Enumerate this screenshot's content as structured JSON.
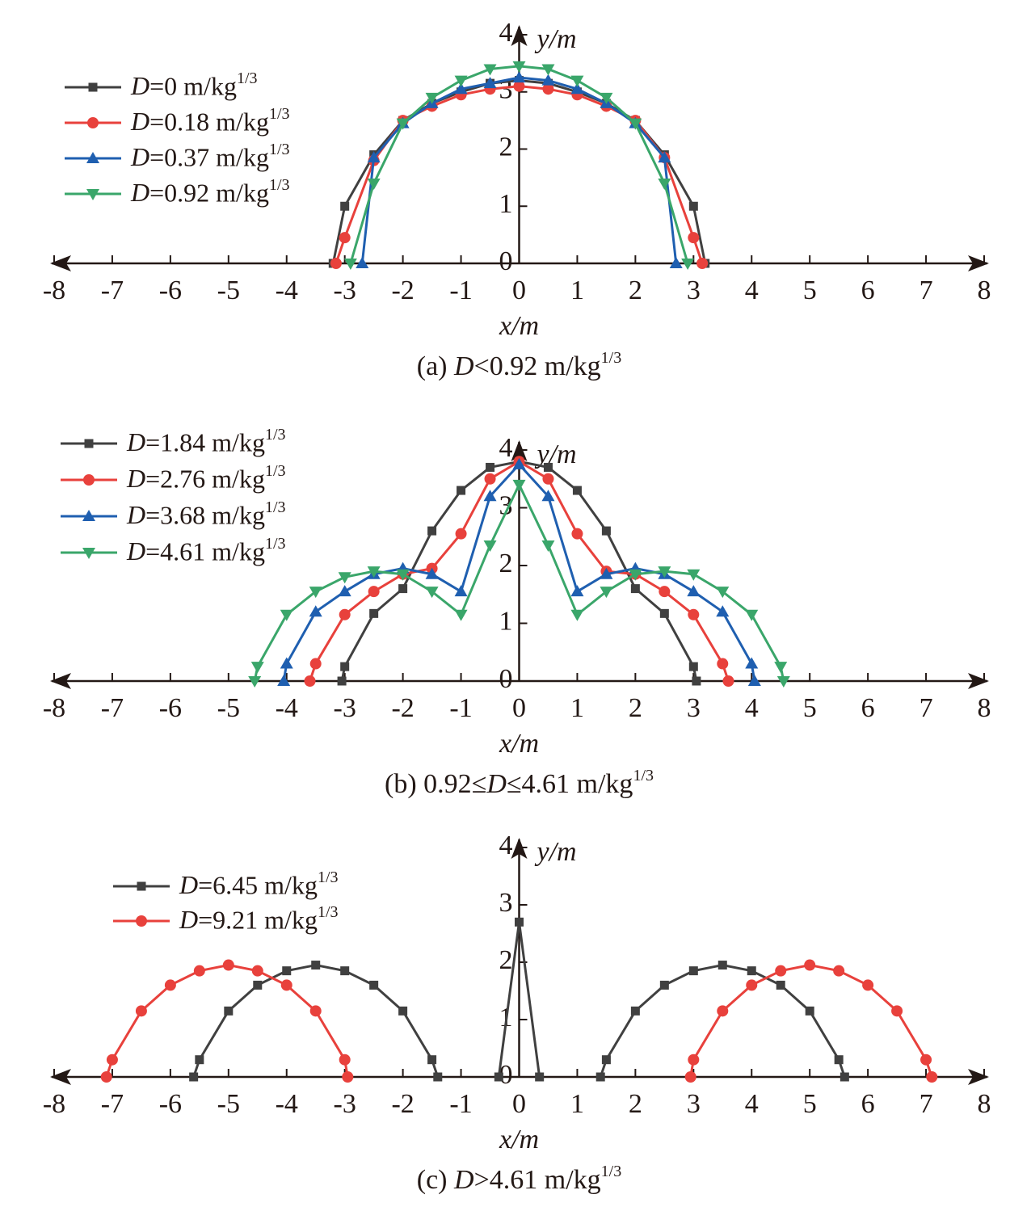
{
  "chart_data": [
    {
      "type": "line",
      "title": "(a) D<0.92 m/kg1/3",
      "xlabel": "x/m",
      "ylabel": "y/m",
      "xlim": [
        -8,
        8
      ],
      "ylim": [
        0,
        4
      ],
      "xticks": [
        -8,
        -7,
        -6,
        -5,
        -4,
        -3,
        -2,
        -1,
        0,
        1,
        2,
        3,
        4,
        5,
        6,
        7,
        8
      ],
      "yticks": [
        0,
        1,
        2,
        3,
        4
      ],
      "grid": false,
      "legend": "upper left",
      "series": [
        {
          "name": "D=0 m/kg1/3",
          "color": "#404040",
          "marker": "square",
          "x": [
            -3.2,
            -3,
            -2.5,
            -2,
            -1.5,
            -1,
            -0.5,
            0,
            0.5,
            1,
            1.5,
            2,
            2.5,
            3,
            3.2
          ],
          "values": [
            0,
            1,
            1.9,
            2.5,
            2.8,
            3.0,
            3.15,
            3.2,
            3.15,
            3.0,
            2.8,
            2.5,
            1.9,
            1,
            0
          ]
        },
        {
          "name": "D=0.18 m/kg1/3",
          "color": "#e8413c",
          "marker": "circle",
          "x": [
            -3.15,
            -3,
            -2.5,
            -2,
            -1.5,
            -1,
            -0.5,
            0,
            0.5,
            1,
            1.5,
            2,
            2.5,
            3,
            3.15
          ],
          "values": [
            0,
            0.45,
            1.8,
            2.5,
            2.75,
            2.95,
            3.05,
            3.1,
            3.05,
            2.95,
            2.75,
            2.5,
            1.85,
            0.45,
            0
          ]
        },
        {
          "name": "D=0.37 m/kg1/3",
          "color": "#1f5fb0",
          "marker": "triangle-up",
          "x": [
            -2.7,
            -2.5,
            -2,
            -1.5,
            -1,
            -0.5,
            0,
            0.5,
            1,
            1.5,
            2,
            2.5,
            2.7
          ],
          "values": [
            0,
            1.85,
            2.45,
            2.8,
            3.05,
            3.15,
            3.25,
            3.2,
            3.05,
            2.8,
            2.45,
            1.85,
            0
          ]
        },
        {
          "name": "D=0.92 m/kg1/3",
          "color": "#3aa66a",
          "marker": "triangle-down",
          "x": [
            -2.9,
            -2.5,
            -2,
            -1.5,
            -1,
            -0.5,
            0,
            0.5,
            1,
            1.5,
            2,
            2.5,
            2.9
          ],
          "values": [
            0,
            1.4,
            2.45,
            2.9,
            3.2,
            3.4,
            3.45,
            3.4,
            3.2,
            2.9,
            2.45,
            1.4,
            0
          ]
        }
      ]
    },
    {
      "type": "line",
      "title": "(b) 0.92≤D≤4.61 m/kg1/3",
      "xlabel": "x/m",
      "ylabel": "y/m",
      "xlim": [
        -8,
        8
      ],
      "ylim": [
        0,
        4
      ],
      "xticks": [
        -8,
        -7,
        -6,
        -5,
        -4,
        -3,
        -2,
        -1,
        0,
        1,
        2,
        3,
        4,
        5,
        6,
        7,
        8
      ],
      "yticks": [
        0,
        1,
        2,
        3,
        4
      ],
      "grid": false,
      "legend": "upper left",
      "series": [
        {
          "name": "D=1.84 m/kg1/3",
          "color": "#404040",
          "marker": "square",
          "x": [
            -3.05,
            -3,
            -2.5,
            -2,
            -1.5,
            -1,
            -0.5,
            0,
            0.5,
            1,
            1.5,
            2,
            2.5,
            3,
            3.05
          ],
          "values": [
            0,
            0.25,
            1.17,
            1.6,
            2.6,
            3.3,
            3.7,
            3.8,
            3.7,
            3.3,
            2.6,
            1.6,
            1.17,
            0.25,
            0
          ]
        },
        {
          "name": "D=2.76 m/kg1/3",
          "color": "#e8413c",
          "marker": "circle",
          "x": [
            -3.6,
            -3.5,
            -3,
            -2.5,
            -2,
            -1.5,
            -1,
            -0.5,
            0,
            0.5,
            1,
            1.5,
            2,
            2.5,
            3,
            3.5,
            3.6
          ],
          "values": [
            0,
            0.3,
            1.15,
            1.55,
            1.85,
            1.95,
            2.55,
            3.5,
            3.8,
            3.5,
            2.55,
            1.9,
            1.85,
            1.55,
            1.15,
            0.3,
            0
          ]
        },
        {
          "name": "D=3.68 m/kg1/3",
          "color": "#1f5fb0",
          "marker": "triangle-up",
          "x": [
            -4.05,
            -4,
            -3.5,
            -3,
            -2.5,
            -2,
            -1.5,
            -1,
            -0.5,
            0,
            0.5,
            1,
            1.5,
            2,
            2.5,
            3,
            3.5,
            4,
            4.05
          ],
          "values": [
            0,
            0.3,
            1.2,
            1.55,
            1.85,
            1.95,
            1.85,
            1.55,
            3.2,
            3.75,
            3.2,
            1.55,
            1.85,
            1.95,
            1.85,
            1.55,
            1.2,
            0.3,
            0
          ]
        },
        {
          "name": "D=4.61 m/kg1/3",
          "color": "#3aa66a",
          "marker": "triangle-down",
          "x": [
            -4.55,
            -4.5,
            -4,
            -3.5,
            -3,
            -2.5,
            -2,
            -1.5,
            -1,
            -0.5,
            0,
            0.5,
            1,
            1.5,
            2,
            2.5,
            3,
            3.5,
            4,
            4.5,
            4.55
          ],
          "values": [
            0,
            0.25,
            1.15,
            1.55,
            1.8,
            1.9,
            1.85,
            1.55,
            1.15,
            2.35,
            3.4,
            2.35,
            1.15,
            1.55,
            1.85,
            1.9,
            1.85,
            1.55,
            1.15,
            0.25,
            0
          ]
        }
      ]
    },
    {
      "type": "line",
      "title": "(c) D>4.61 m/kg1/3",
      "xlabel": "x/m",
      "ylabel": "y/m",
      "xlim": [
        -8,
        8
      ],
      "ylim": [
        0,
        4
      ],
      "xticks": [
        -8,
        -7,
        -6,
        -5,
        -4,
        -3,
        -2,
        -1,
        0,
        1,
        2,
        3,
        4,
        5,
        6,
        7,
        8
      ],
      "yticks": [
        0,
        1,
        2,
        3,
        4
      ],
      "grid": false,
      "legend": "upper left",
      "series": [
        {
          "name": "D=6.45 m/kg1/3",
          "color": "#404040",
          "marker": "square",
          "x": [
            -5.6,
            -5.5,
            -5,
            -4.5,
            -4,
            -3.5,
            -3,
            -2.5,
            -2,
            -1.5,
            -1.4,
            null,
            -0.35,
            0,
            0.35,
            null,
            1.4,
            1.5,
            2,
            2.5,
            3,
            3.5,
            4,
            4.5,
            5,
            5.5,
            5.6
          ],
          "values": [
            0,
            0.3,
            1.15,
            1.6,
            1.85,
            1.95,
            1.85,
            1.6,
            1.15,
            0.3,
            0,
            null,
            0,
            2.7,
            0,
            null,
            0,
            0.3,
            1.15,
            1.6,
            1.85,
            1.95,
            1.85,
            1.6,
            1.15,
            0.3,
            0
          ]
        },
        {
          "name": "D=9.21 m/kg1/3",
          "color": "#e8413c",
          "marker": "circle",
          "x": [
            -7.1,
            -7,
            -6.5,
            -6,
            -5.5,
            -5,
            -4.5,
            -4,
            -3.5,
            -3,
            -2.95,
            null,
            2.95,
            3,
            3.5,
            4,
            4.5,
            5,
            5.5,
            6,
            6.5,
            7,
            7.1
          ],
          "values": [
            0,
            0.3,
            1.15,
            1.6,
            1.85,
            1.95,
            1.85,
            1.6,
            1.15,
            0.3,
            0,
            null,
            0,
            0.3,
            1.15,
            1.6,
            1.85,
            1.95,
            1.85,
            1.6,
            1.15,
            0.3,
            0
          ]
        }
      ]
    }
  ]
}
